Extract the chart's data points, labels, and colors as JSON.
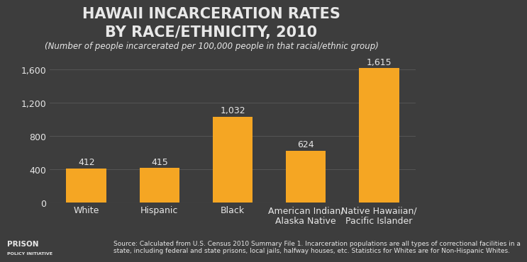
{
  "title_line1": "HAWAII INCARCERATION RATES",
  "title_line2": "BY RACE/ETHNICITY, 2010",
  "subtitle": "(Number of people incarcerated per 100,000 people in that racial/ethnic group)",
  "categories": [
    "White",
    "Hispanic",
    "Black",
    "American Indian/\nAlaska Native",
    "Native Hawaiian/\nPacific Islander"
  ],
  "values": [
    412,
    415,
    1032,
    624,
    1615
  ],
  "bar_color": "#F5A623",
  "background_color": "#3d3d3d",
  "text_color": "#e8e8e8",
  "grid_color": "#555555",
  "yticks": [
    0,
    400,
    800,
    1200,
    1600
  ],
  "ylim": [
    0,
    1750
  ],
  "source_text": "Source: Calculated from U.S. Census 2010 Summary File 1. Incarceration populations are all types of correctional facilities in a\nstate, including federal and state prisons, local jails, halfway houses, etc. Statistics for Whites are for Non-Hispanic Whites.",
  "logo_text_top": "PRISON",
  "logo_text_bottom": "POLICY INITIATIVE",
  "title_fontsize": 15,
  "subtitle_fontsize": 8.5,
  "tick_fontsize": 9,
  "label_fontsize": 9,
  "bar_label_fontsize": 9,
  "source_fontsize": 6.5
}
